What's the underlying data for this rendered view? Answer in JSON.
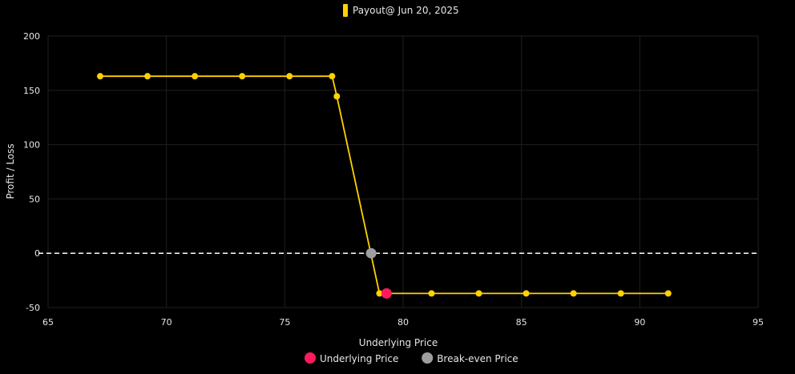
{
  "chart_data": {
    "type": "line",
    "legend_top": {
      "label": "Payout@ Jun 20, 2025",
      "color": "#ffd200",
      "placement": "top-center"
    },
    "xlabel": "Underlying Price",
    "ylabel": "Profit / Loss",
    "xlim": [
      65,
      95
    ],
    "ylim": [
      -50,
      200
    ],
    "x_ticks": [
      "65",
      "70",
      "75",
      "80",
      "85",
      "90",
      "95"
    ],
    "y_ticks": [
      "-50",
      "0",
      "50",
      "100",
      "150",
      "200"
    ],
    "grid": true,
    "series": [
      {
        "color": "#ffd200",
        "x": [
          67.2,
          69.2,
          71.2,
          73.2,
          75.2,
          77.0,
          77.2,
          79.0,
          79.3,
          81.2,
          83.2,
          85.2,
          87.2,
          89.2,
          91.2
        ],
        "y": [
          163,
          163,
          163,
          163,
          163,
          163,
          144.5,
          -37,
          -37,
          -37,
          -37,
          -37,
          -37,
          -37,
          -37
        ]
      }
    ],
    "zero_line": {
      "y": 0,
      "style": "dashed",
      "color": "#ffffff"
    },
    "markers": [
      {
        "name": "Underlying Price",
        "x": 79.3,
        "y": -37,
        "color": "#ff1a5e"
      },
      {
        "name": "Break-even Price",
        "x": 78.65,
        "y": 0,
        "color": "#9e9e9e"
      }
    ],
    "legend_bottom_placement": "bottom-center"
  }
}
